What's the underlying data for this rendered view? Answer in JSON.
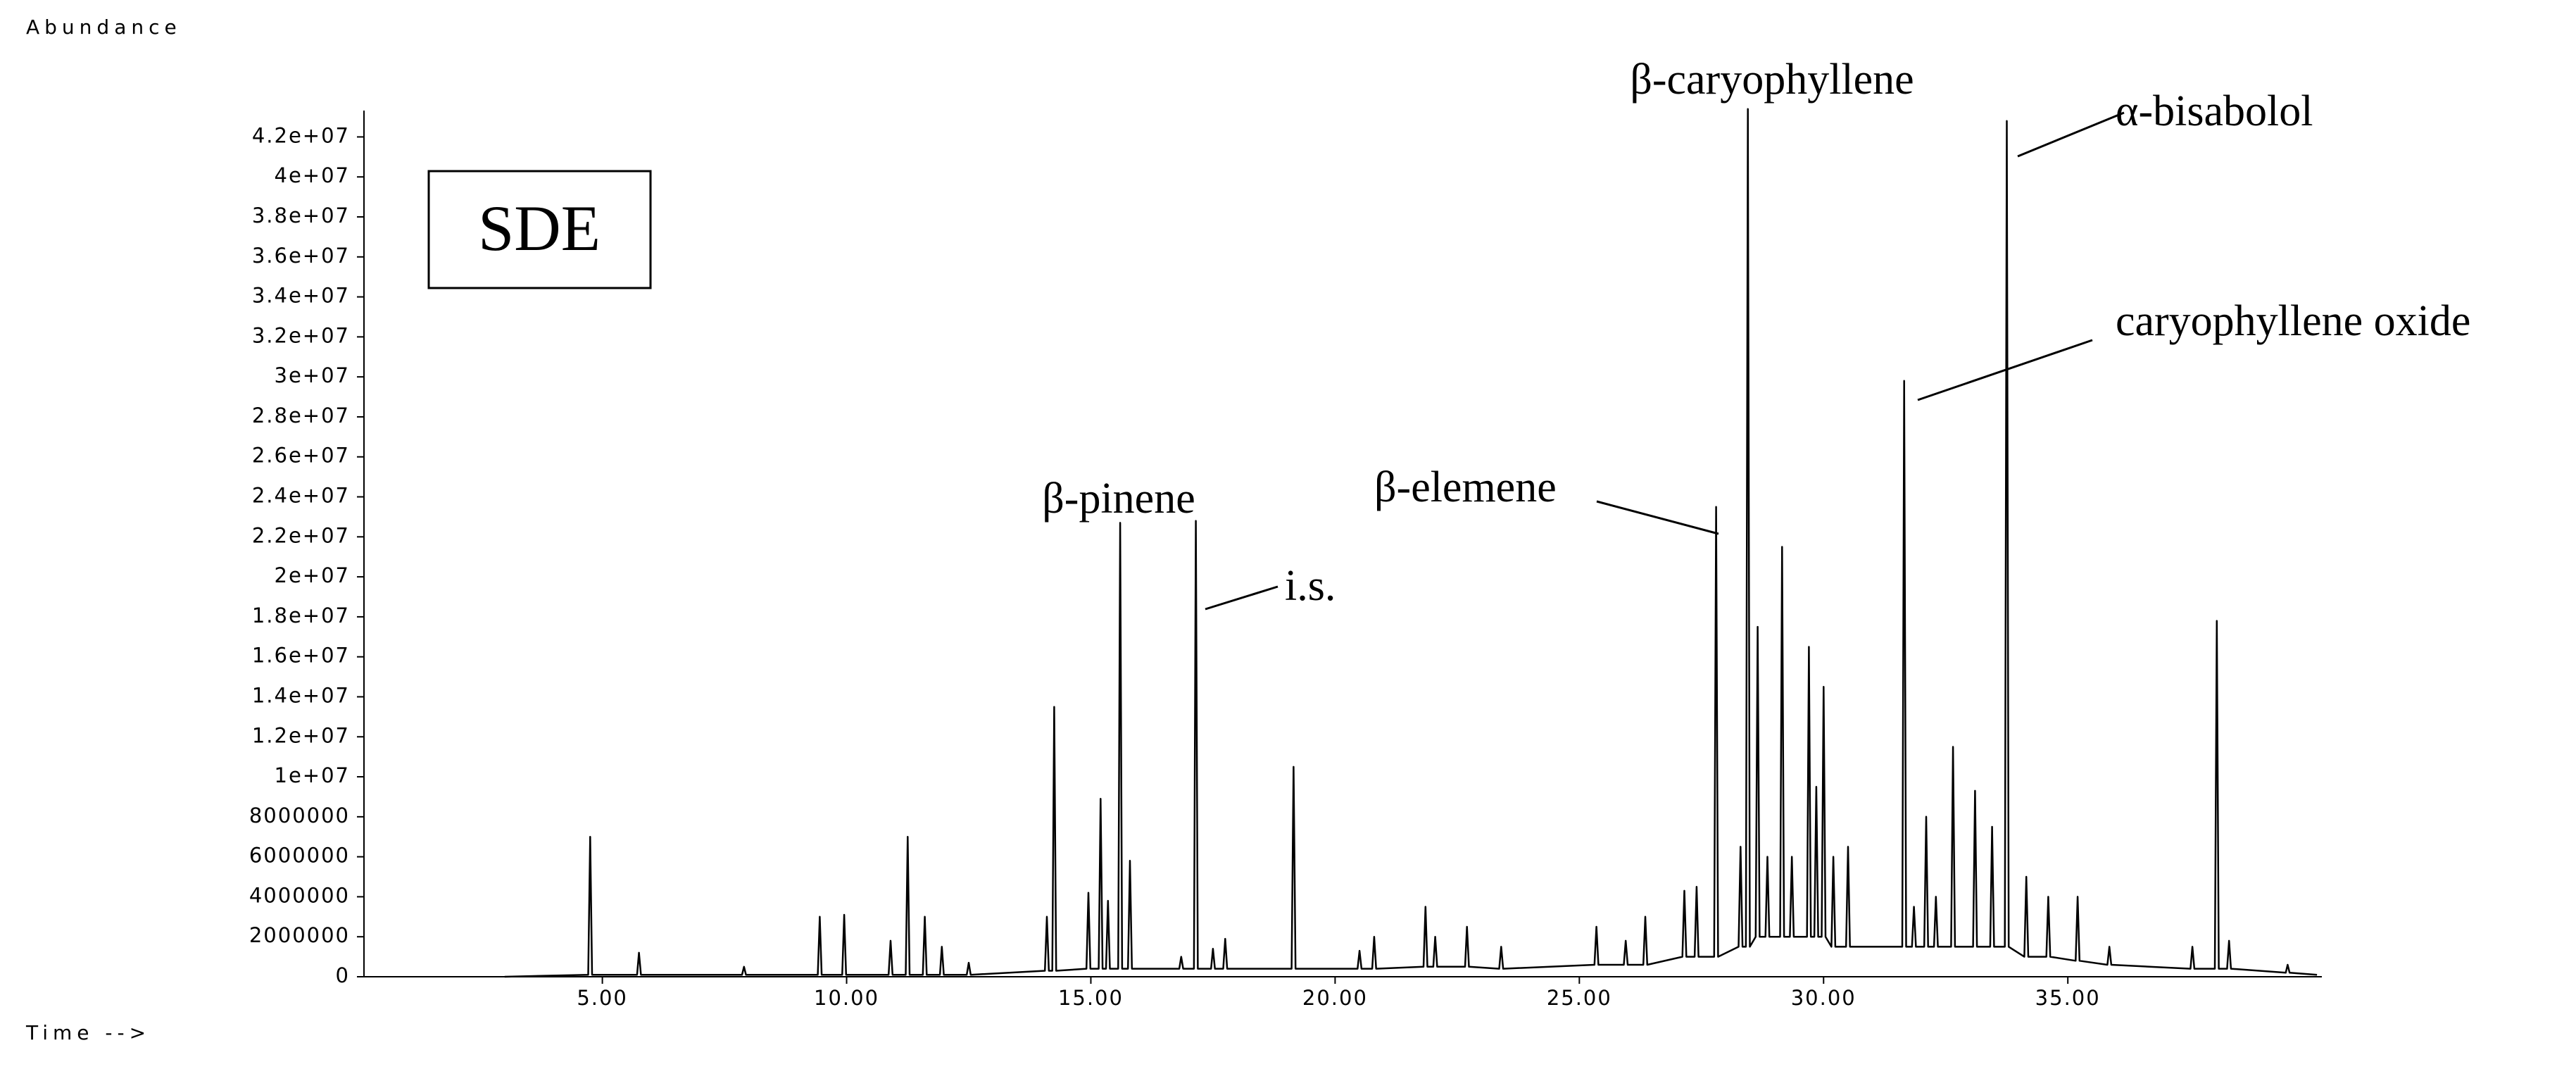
{
  "chart_data": {
    "type": "line",
    "ylabel": "Abundance",
    "xlabel": "Time -->",
    "inset_label": "SDE",
    "annotations": [
      "β-pinene",
      "i.s.",
      "β-elemene",
      "β-caryophyllene",
      "α-bisabolol",
      "caryophyllene oxide"
    ],
    "color": "#000000",
    "xlim": [
      0.12,
      40.2
    ],
    "ylim": [
      0,
      43600000
    ],
    "xticks": [
      {
        "value": 5,
        "label": "5.00"
      },
      {
        "value": 10,
        "label": "10.00"
      },
      {
        "value": 15,
        "label": "15.00"
      },
      {
        "value": 20,
        "label": "20.00"
      },
      {
        "value": 25,
        "label": "25.00"
      },
      {
        "value": 30,
        "label": "30.00"
      },
      {
        "value": 35,
        "label": "35.00"
      }
    ],
    "yticks": [
      0,
      2000000,
      4000000,
      6000000,
      8000000,
      {
        "value": 10000000,
        "label": "1e+07"
      },
      {
        "value": 12000000,
        "label": "1.2e+07"
      },
      {
        "value": 14000000,
        "label": "1.4e+07"
      },
      {
        "value": 16000000,
        "label": "1.6e+07"
      },
      {
        "value": 18000000,
        "label": "1.8e+07"
      },
      {
        "value": 20000000,
        "label": "2e+07"
      },
      {
        "value": 22000000,
        "label": "2.2e+07"
      },
      {
        "value": 24000000,
        "label": "2.4e+07"
      },
      {
        "value": 26000000,
        "label": "2.6e+07"
      },
      {
        "value": 28000000,
        "label": "2.8e+07"
      },
      {
        "value": 30000000,
        "label": "3e+07"
      },
      {
        "value": 32000000,
        "label": "3.2e+07"
      },
      {
        "value": 34000000,
        "label": "3.4e+07"
      },
      {
        "value": 36000000,
        "label": "3.6e+07"
      },
      {
        "value": 38000000,
        "label": "3.8e+07"
      },
      {
        "value": 40000000,
        "label": "4e+07"
      },
      {
        "value": 42000000,
        "label": "4.2e+07"
      }
    ],
    "x": [
      3.0,
      4.71,
      4.75,
      4.79,
      5.71,
      5.75,
      5.79,
      7.86,
      7.9,
      7.94,
      9.41,
      9.45,
      9.49,
      9.91,
      9.95,
      9.99,
      10.86,
      10.9,
      10.94,
      11.21,
      11.25,
      11.29,
      11.56,
      11.6,
      11.64,
      11.91,
      11.95,
      11.99,
      12.46,
      12.5,
      12.54,
      14.06,
      14.1,
      14.14,
      14.21,
      14.25,
      14.29,
      14.91,
      14.95,
      14.99,
      15.16,
      15.2,
      15.24,
      15.31,
      15.35,
      15.39,
      15.56,
      15.6,
      15.64,
      15.76,
      15.8,
      15.84,
      16.81,
      16.85,
      16.89,
      17.11,
      17.15,
      17.19,
      17.46,
      17.5,
      17.54,
      17.71,
      17.75,
      17.79,
      19.11,
      19.15,
      19.19,
      20.46,
      20.5,
      20.54,
      20.76,
      20.8,
      20.84,
      21.81,
      21.85,
      21.89,
      22.01,
      22.05,
      22.09,
      22.66,
      22.7,
      22.74,
      23.36,
      23.4,
      23.44,
      25.31,
      25.35,
      25.39,
      25.91,
      25.95,
      25.99,
      26.31,
      26.35,
      26.39,
      27.11,
      27.15,
      27.19,
      27.36,
      27.4,
      27.44,
      27.76,
      27.8,
      27.84,
      28.26,
      28.3,
      28.34,
      28.41,
      28.45,
      28.49,
      28.61,
      28.65,
      28.69,
      28.81,
      28.85,
      28.89,
      29.11,
      29.15,
      29.19,
      29.31,
      29.35,
      29.39,
      29.66,
      29.7,
      29.74,
      29.81,
      29.85,
      29.89,
      29.96,
      30.0,
      30.04,
      30.16,
      30.2,
      30.24,
      30.46,
      30.5,
      30.54,
      31.61,
      31.65,
      31.69,
      31.81,
      31.85,
      31.89,
      32.06,
      32.1,
      32.14,
      32.26,
      32.3,
      32.34,
      32.61,
      32.65,
      32.69,
      33.06,
      33.1,
      33.14,
      33.41,
      33.45,
      33.49,
      33.71,
      33.75,
      33.79,
      34.11,
      34.15,
      34.19,
      34.56,
      34.6,
      34.64,
      35.16,
      35.2,
      35.24,
      35.81,
      35.85,
      35.89,
      37.51,
      37.55,
      37.59,
      38.01,
      38.05,
      38.09,
      38.26,
      38.3,
      38.34,
      39.46,
      39.5,
      39.54,
      40.1
    ],
    "values": [
      0,
      100000,
      7000000,
      100000,
      100000,
      1200000,
      100000,
      100000,
      500000,
      100000,
      100000,
      3000000,
      100000,
      100000,
      3100000,
      100000,
      100000,
      1800000,
      100000,
      100000,
      7000000,
      100000,
      100000,
      3000000,
      100000,
      100000,
      1500000,
      100000,
      100000,
      700000,
      100000,
      300000,
      3000000,
      300000,
      300000,
      13500000,
      300000,
      400000,
      4200000,
      400000,
      400000,
      8900000,
      400000,
      400000,
      3800000,
      400000,
      400000,
      22700000,
      400000,
      400000,
      5800000,
      400000,
      400000,
      1000000,
      400000,
      400000,
      22800000,
      400000,
      400000,
      1400000,
      400000,
      400000,
      1900000,
      400000,
      400000,
      10500000,
      400000,
      400000,
      1300000,
      400000,
      400000,
      2000000,
      400000,
      500000,
      3500000,
      500000,
      500000,
      2000000,
      500000,
      500000,
      2500000,
      500000,
      400000,
      1500000,
      400000,
      600000,
      2500000,
      600000,
      600000,
      1800000,
      600000,
      600000,
      3000000,
      600000,
      1000000,
      4300000,
      1000000,
      1000000,
      4500000,
      1000000,
      1000000,
      23500000,
      1000000,
      1500000,
      6500000,
      1500000,
      1500000,
      43400000,
      1500000,
      2000000,
      17500000,
      2000000,
      2000000,
      6000000,
      2000000,
      2000000,
      21500000,
      2000000,
      2000000,
      6000000,
      2000000,
      2000000,
      16500000,
      2000000,
      2000000,
      9500000,
      2000000,
      2000000,
      14500000,
      2000000,
      1500000,
      6000000,
      1500000,
      1500000,
      6500000,
      1500000,
      1500000,
      29800000,
      1500000,
      1500000,
      3500000,
      1500000,
      1500000,
      8000000,
      1500000,
      1500000,
      4000000,
      1500000,
      1500000,
      11500000,
      1500000,
      1500000,
      9300000,
      1500000,
      1500000,
      7500000,
      1500000,
      1500000,
      42800000,
      1500000,
      1000000,
      5000000,
      1000000,
      1000000,
      4000000,
      1000000,
      800000,
      4000000,
      800000,
      600000,
      1500000,
      600000,
      400000,
      1500000,
      400000,
      400000,
      17800000,
      400000,
      400000,
      1800000,
      400000,
      200000,
      600000,
      200000,
      100000
    ]
  }
}
